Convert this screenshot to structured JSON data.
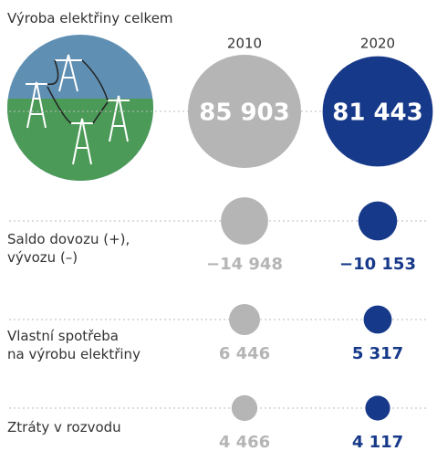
{
  "chart_data": {
    "type": "bubble",
    "categories": [
      "Výroba elektřiny celkem",
      "Saldo dovozu (+),\nvývozu (–)",
      "Vlastní spotřeba\nna výrobu elektřiny",
      "Ztráty v rozvodu"
    ],
    "series": [
      {
        "name": "2010",
        "color": "#b5b5b5",
        "values": [
          85903,
          -14948,
          6446,
          4466
        ],
        "value_labels": [
          "85 903",
          "−14 948",
          "6 446",
          "4 466"
        ]
      },
      {
        "name": "2020",
        "color": "#17398a",
        "values": [
          81443,
          -10153,
          5317,
          4117
        ],
        "value_labels": [
          "81 443",
          "−10 153",
          "5 317",
          "4 117"
        ]
      }
    ]
  }
}
